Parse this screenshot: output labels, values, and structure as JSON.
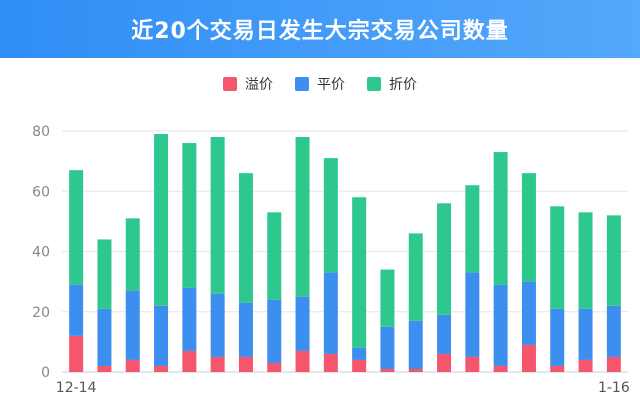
{
  "header": {
    "title": "近20个交易日发生大宗交易公司数量"
  },
  "colors": {
    "premium": "#f5566e",
    "par": "#3d8fef",
    "discount": "#2ec88e",
    "grid": "#e6e6e6",
    "axis_text": "#888888"
  },
  "chart_data": {
    "type": "bar",
    "stacked": true,
    "title": "近20个交易日发生大宗交易公司数量",
    "x_tick_labels": [
      "12-14",
      "1-16"
    ],
    "categories_count": 20,
    "ylim": [
      0,
      80
    ],
    "yticks": [
      0,
      20,
      40,
      60,
      80
    ],
    "grid": true,
    "legend_position": "top-center",
    "series": [
      {
        "name": "溢价",
        "color": "#f5566e",
        "values": [
          12,
          2,
          4,
          2,
          7,
          5,
          5,
          3,
          7,
          6,
          4,
          1,
          1,
          6,
          5,
          2,
          9,
          2,
          4,
          5
        ]
      },
      {
        "name": "平价",
        "color": "#3d8fef",
        "values": [
          17,
          19,
          23,
          20,
          21,
          21,
          18,
          21,
          18,
          27,
          4,
          14,
          16,
          13,
          28,
          27,
          21,
          19,
          17,
          17
        ]
      },
      {
        "name": "折价",
        "color": "#2ec88e",
        "values": [
          38,
          23,
          24,
          57,
          48,
          52,
          43,
          29,
          53,
          38,
          50,
          19,
          29,
          37,
          29,
          44,
          36,
          34,
          32,
          30
        ]
      }
    ]
  }
}
